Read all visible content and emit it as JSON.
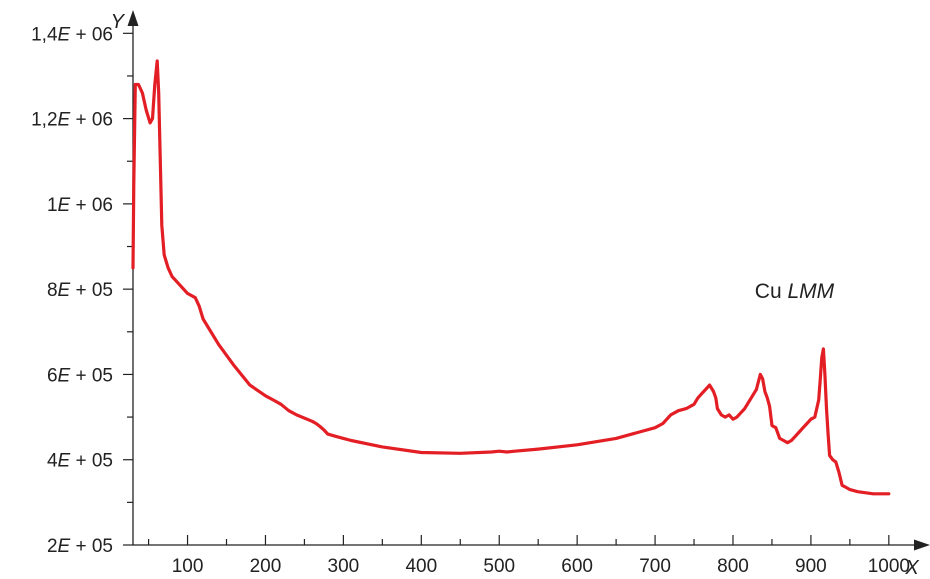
{
  "chart_data": {
    "type": "line",
    "title": "",
    "xlabel": "X",
    "ylabel": "Y",
    "xlim": [
      30,
      1040
    ],
    "ylim": [
      200000,
      1450000
    ],
    "grid": false,
    "x_ticks": [
      100,
      200,
      300,
      400,
      500,
      600,
      700,
      800,
      900,
      1000
    ],
    "x_tick_labels": [
      "100",
      "200",
      "300",
      "400",
      "500",
      "600",
      "700",
      "800",
      "900",
      "1000"
    ],
    "y_ticks": [
      200000,
      400000,
      600000,
      800000,
      1000000,
      1200000,
      1400000
    ],
    "y_tick_labels": [
      {
        "pre": "2",
        "mid": "E",
        "post": " + 05"
      },
      {
        "pre": "4",
        "mid": "E",
        "post": " + 05"
      },
      {
        "pre": "6",
        "mid": "E",
        "post": " + 05"
      },
      {
        "pre": "8",
        "mid": "E",
        "post": " + 05"
      },
      {
        "pre": "1",
        "mid": "E",
        "post": " + 06"
      },
      {
        "pre": "1,2",
        "mid": "E",
        "post": " + 06"
      },
      {
        "pre": "1,4",
        "mid": "E",
        "post": " + 06"
      }
    ],
    "annotation": {
      "text_plain": "Cu ",
      "text_italic": "LMM",
      "x": 905,
      "y": 800000
    },
    "series": [
      {
        "color": "#e31e24",
        "x": [
          30,
          31,
          33,
          37,
          42,
          47,
          52,
          55,
          58,
          61,
          63,
          65,
          67,
          70,
          75,
          80,
          90,
          100,
          110,
          115,
          120,
          140,
          160,
          180,
          200,
          210,
          220,
          230,
          240,
          260,
          265,
          270,
          275,
          280,
          290,
          300,
          310,
          350,
          400,
          450,
          490,
          500,
          510,
          520,
          550,
          600,
          650,
          680,
          700,
          710,
          715,
          720,
          725,
          730,
          740,
          750,
          755,
          760,
          765,
          770,
          775,
          778,
          780,
          785,
          790,
          795,
          800,
          805,
          810,
          815,
          820,
          825,
          830,
          835,
          838,
          841,
          844,
          847,
          850,
          855,
          860,
          865,
          870,
          875,
          880,
          885,
          890,
          895,
          900,
          905,
          910,
          912,
          914,
          916,
          918,
          920,
          922,
          924,
          926,
          928,
          932,
          936,
          940,
          945,
          950,
          960,
          980,
          1000
        ],
        "y": [
          850000,
          1050000,
          1280000,
          1280000,
          1260000,
          1220000,
          1190000,
          1200000,
          1280000,
          1335000,
          1260000,
          1100000,
          950000,
          880000,
          850000,
          830000,
          810000,
          790000,
          780000,
          760000,
          730000,
          670000,
          620000,
          575000,
          550000,
          540000,
          530000,
          515000,
          505000,
          490000,
          485000,
          478000,
          470000,
          460000,
          455000,
          450000,
          445000,
          430000,
          417000,
          415000,
          418000,
          420000,
          418000,
          420000,
          425000,
          435000,
          450000,
          465000,
          475000,
          485000,
          495000,
          505000,
          510000,
          515000,
          520000,
          530000,
          545000,
          555000,
          565000,
          575000,
          560000,
          545000,
          520000,
          505000,
          500000,
          505000,
          495000,
          500000,
          510000,
          520000,
          535000,
          550000,
          565000,
          600000,
          590000,
          560000,
          545000,
          525000,
          480000,
          475000,
          450000,
          445000,
          440000,
          445000,
          455000,
          465000,
          475000,
          485000,
          495000,
          500000,
          540000,
          590000,
          640000,
          660000,
          600000,
          520000,
          460000,
          410000,
          405000,
          400000,
          395000,
          370000,
          340000,
          335000,
          330000,
          325000,
          320000,
          320000
        ]
      }
    ]
  }
}
